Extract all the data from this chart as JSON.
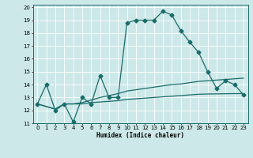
{
  "title": "",
  "xlabel": "Humidex (Indice chaleur)",
  "bg_color": "#cde8e8",
  "line_color": "#1a6b6b",
  "grid_color": "#ffffff",
  "xlim": [
    -0.5,
    23.5
  ],
  "ylim": [
    11,
    20.2
  ],
  "xticks": [
    0,
    1,
    2,
    3,
    4,
    5,
    6,
    7,
    8,
    9,
    10,
    11,
    12,
    13,
    14,
    15,
    16,
    17,
    18,
    19,
    20,
    21,
    22,
    23
  ],
  "yticks": [
    11,
    12,
    13,
    14,
    15,
    16,
    17,
    18,
    19,
    20
  ],
  "line1_x": [
    0,
    1,
    2,
    3,
    4,
    5,
    6,
    7,
    8,
    9,
    10,
    11,
    12,
    13,
    14,
    15,
    16,
    17,
    18,
    19,
    20,
    21,
    22,
    23
  ],
  "line1_y": [
    12.5,
    14.0,
    12.0,
    12.5,
    11.1,
    13.0,
    12.5,
    14.7,
    13.0,
    13.0,
    18.8,
    19.0,
    19.0,
    19.0,
    19.7,
    19.4,
    18.2,
    17.3,
    16.5,
    15.0,
    13.7,
    14.3,
    14.0,
    13.2
  ],
  "line2_x": [
    0,
    1,
    2,
    3,
    4,
    5,
    6,
    7,
    8,
    9,
    10,
    11,
    12,
    13,
    14,
    15,
    16,
    17,
    18,
    19,
    20,
    21,
    22,
    23
  ],
  "line2_y": [
    12.5,
    12.3,
    12.1,
    12.5,
    12.5,
    12.5,
    12.6,
    12.65,
    12.7,
    12.75,
    12.85,
    12.9,
    12.95,
    13.0,
    13.05,
    13.1,
    13.15,
    13.2,
    13.25,
    13.27,
    13.28,
    13.29,
    13.3,
    13.3
  ],
  "line3_x": [
    0,
    1,
    2,
    3,
    4,
    5,
    6,
    7,
    8,
    9,
    10,
    11,
    12,
    13,
    14,
    15,
    16,
    17,
    18,
    19,
    20,
    21,
    22,
    23
  ],
  "line3_y": [
    12.5,
    12.3,
    12.1,
    12.5,
    12.5,
    12.6,
    12.8,
    13.0,
    13.15,
    13.3,
    13.5,
    13.6,
    13.7,
    13.8,
    13.9,
    14.0,
    14.05,
    14.15,
    14.25,
    14.3,
    14.35,
    14.4,
    14.45,
    14.5
  ]
}
